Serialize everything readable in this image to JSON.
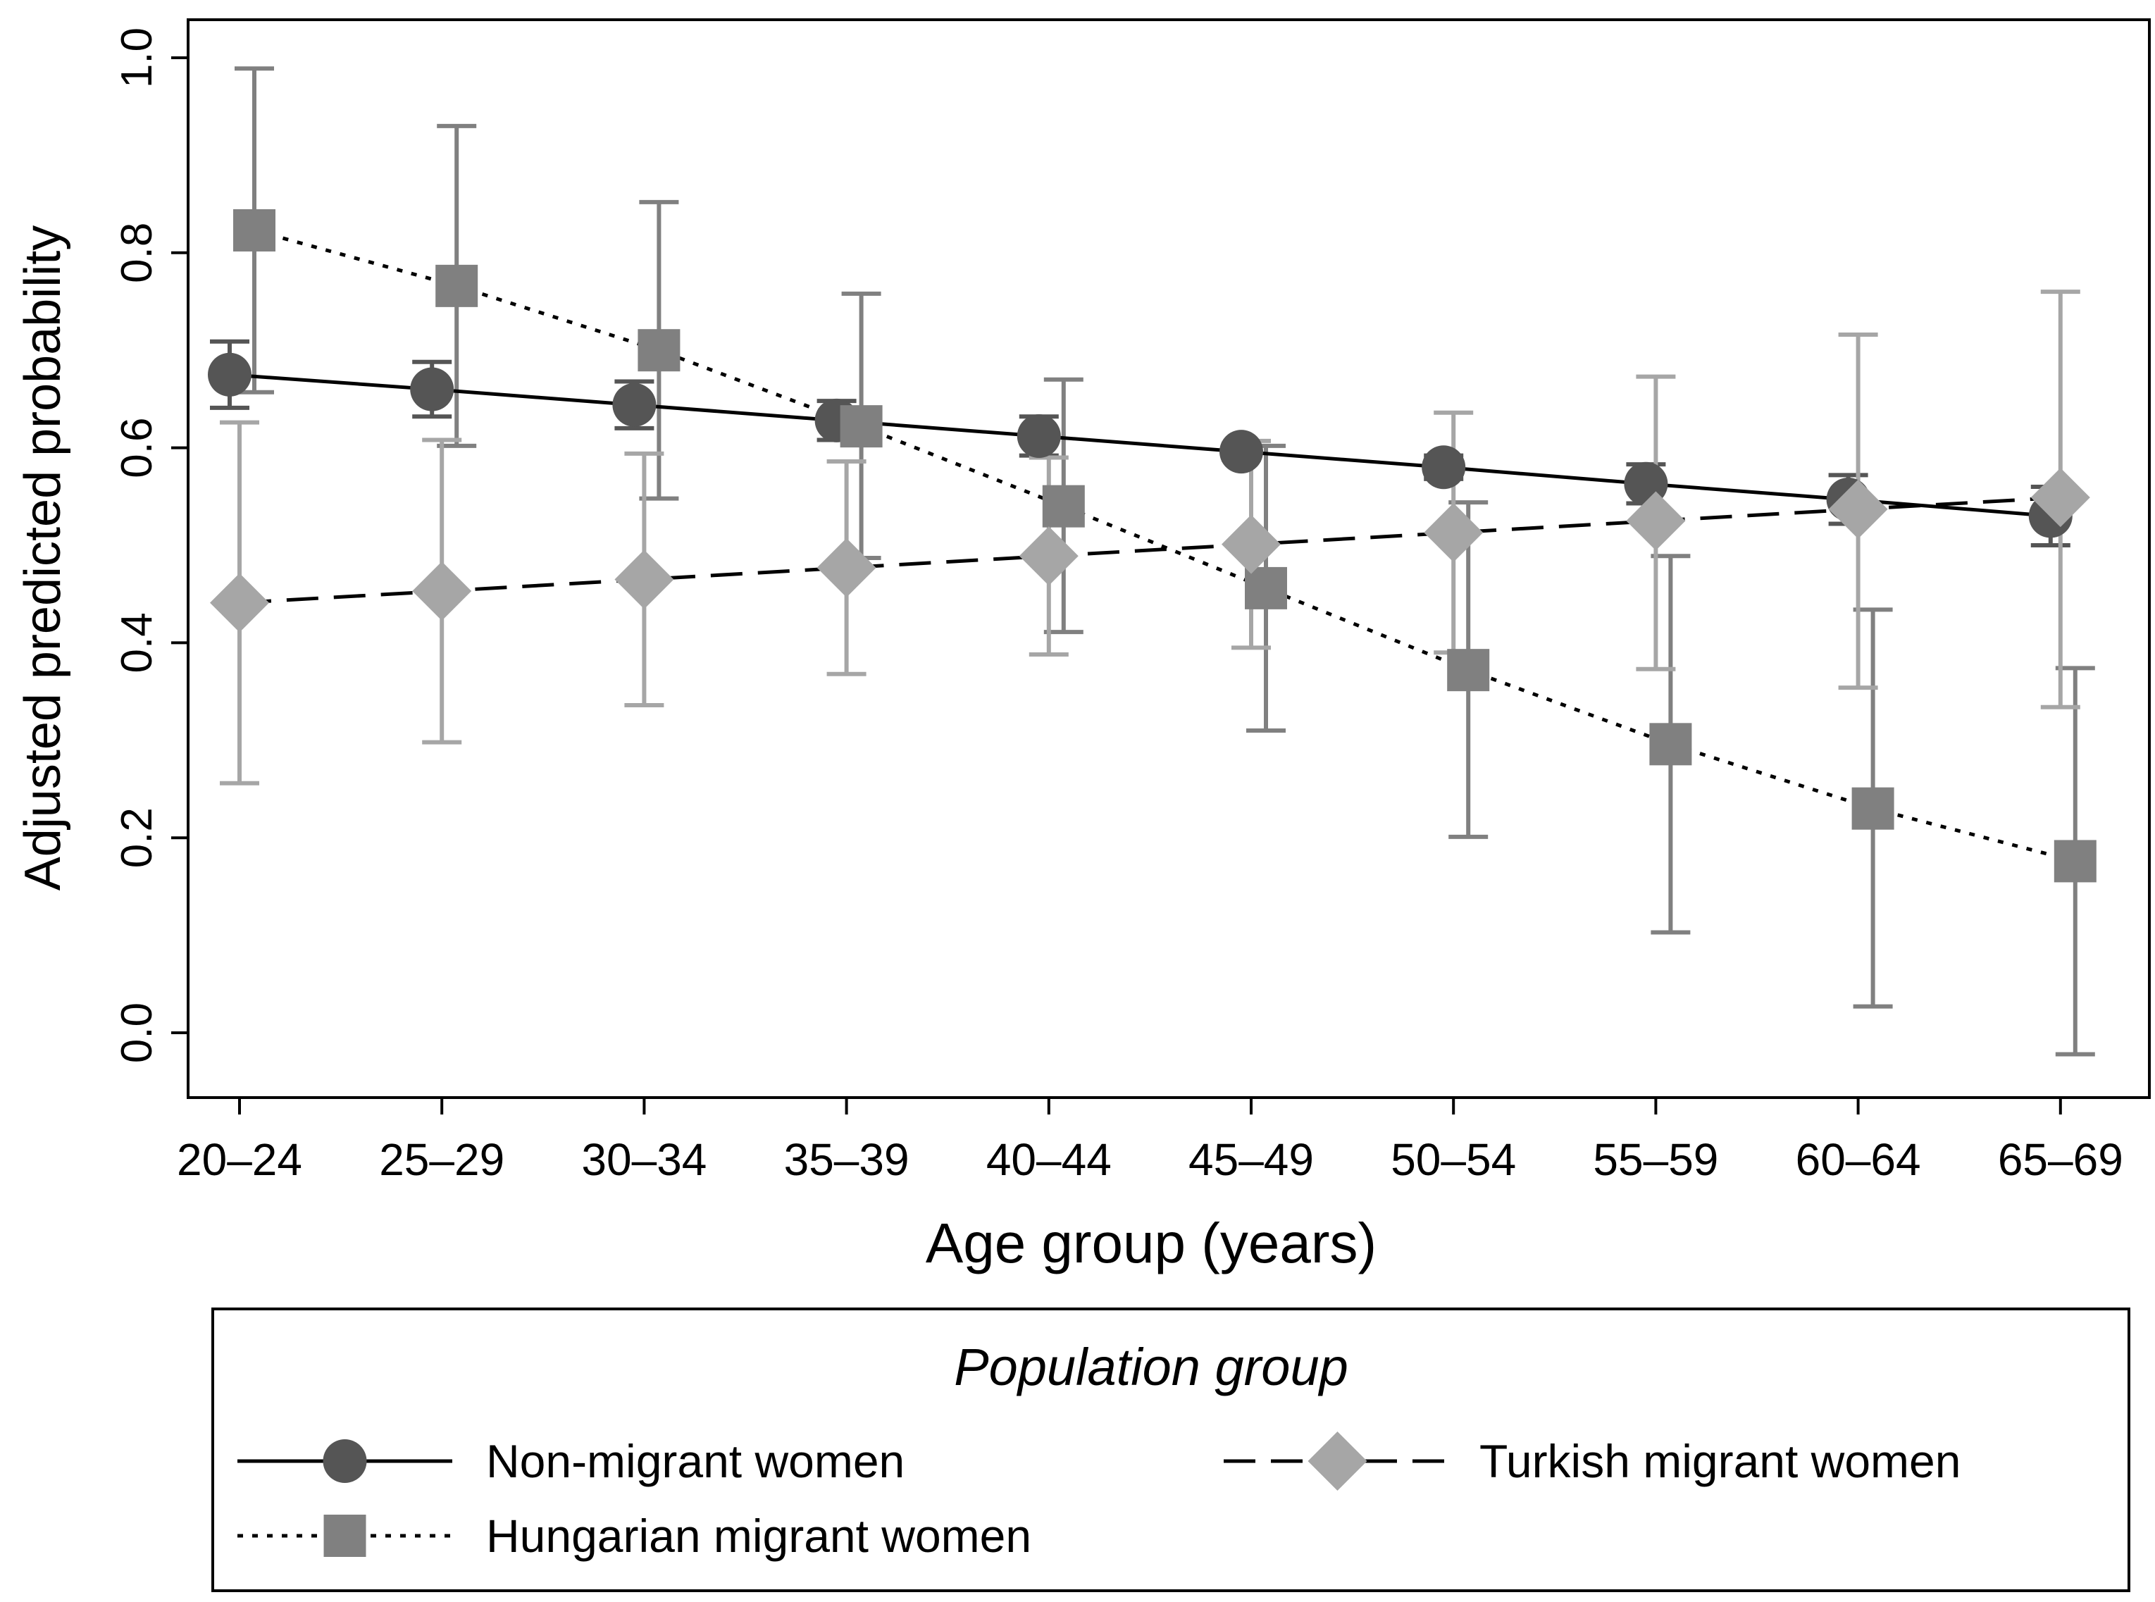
{
  "chart_data": {
    "type": "line",
    "title": "",
    "xlabel": "Age group (years)",
    "ylabel": "Adjusted predicted probability",
    "ylim": [
      -0.06,
      1.06
    ],
    "yticks": [
      "0.0",
      "0.2",
      "0.4",
      "0.6",
      "0.8",
      "1.0"
    ],
    "categories": [
      "20–24",
      "25–29",
      "30–34",
      "35–39",
      "40–44",
      "45–49",
      "50–54",
      "55–59",
      "60–64",
      "65–69"
    ],
    "legend": {
      "title": "Population group",
      "placement": "bottom"
    },
    "series": [
      {
        "name": "Non-migrant women",
        "marker": "circle",
        "line": "solid",
        "color": "#555555",
        "values": [
          0.675,
          0.66,
          0.644,
          0.628,
          0.612,
          0.596,
          0.58,
          0.563,
          0.547,
          0.53
        ],
        "ci_low": [
          0.641,
          0.632,
          0.62,
          0.608,
          0.592,
          0.588,
          0.568,
          0.543,
          0.522,
          0.5
        ],
        "ci_high": [
          0.709,
          0.688,
          0.668,
          0.648,
          0.632,
          0.604,
          0.592,
          0.583,
          0.572,
          0.56
        ]
      },
      {
        "name": "Hungarian migrant women",
        "marker": "square",
        "line": "dotted",
        "color": "#808080",
        "values": [
          0.823,
          0.766,
          0.7,
          0.622,
          0.54,
          0.456,
          0.372,
          0.296,
          0.23,
          0.176
        ],
        "ci_low": [
          0.657,
          0.602,
          0.548,
          0.487,
          0.411,
          0.31,
          0.201,
          0.103,
          0.027,
          -0.022
        ],
        "ci_high": [
          0.989,
          0.93,
          0.852,
          0.758,
          0.67,
          0.602,
          0.544,
          0.489,
          0.434,
          0.374
        ]
      },
      {
        "name": "Turkish migrant women",
        "marker": "diamond",
        "line": "dashed",
        "color": "#a6a6a6",
        "values": [
          0.441,
          0.453,
          0.465,
          0.477,
          0.489,
          0.501,
          0.513,
          0.525,
          0.537,
          0.549
        ],
        "ci_low": [
          0.256,
          0.298,
          0.336,
          0.368,
          0.388,
          0.395,
          0.39,
          0.373,
          0.354,
          0.334
        ],
        "ci_high": [
          0.626,
          0.608,
          0.594,
          0.586,
          0.59,
          0.607,
          0.636,
          0.673,
          0.716,
          0.76
        ]
      }
    ]
  }
}
